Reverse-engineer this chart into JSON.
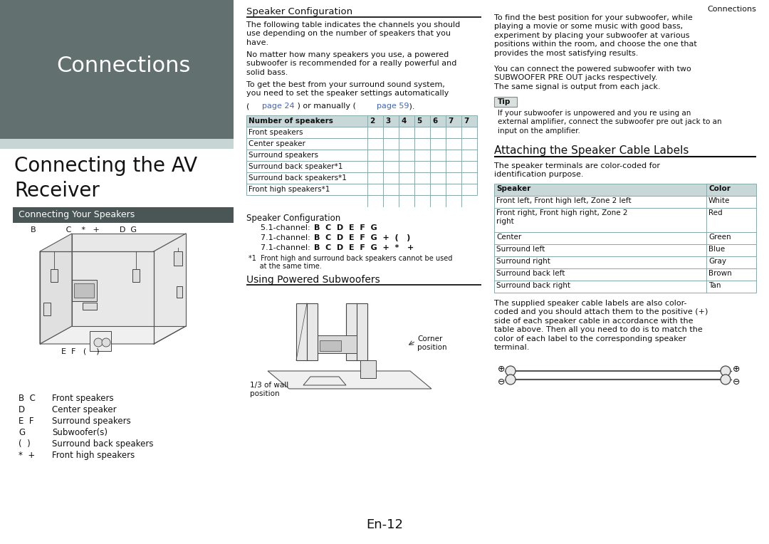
{
  "page_title": "Connections",
  "header_bg": "#627070",
  "header_text_color": "#ffffff",
  "section_bg": "#4a5555",
  "section_text_color": "#ffffff",
  "light_strip_color": "#c8d5d5",
  "body_bg": "#ffffff",
  "body_text_color": "#111111",
  "link_color": "#4466bb",
  "table_header_bg": "#c8d8d8",
  "table_border_color": "#88aaaa",
  "tip_bg": "#d8e0e0",
  "tip_border": "#888888",
  "col1_title": "Connections",
  "col1_section": "Connecting the AV\nReceiver",
  "col1_subsection": "Connecting Your Speakers",
  "legend_items": [
    [
      "B  C",
      "Front speakers"
    ],
    [
      "D",
      "Center speaker"
    ],
    [
      "E  F",
      "Surround speakers"
    ],
    [
      "G",
      "Subwoofer(s)"
    ],
    [
      "(  )",
      "Surround back speakers"
    ],
    [
      "*  +",
      "Front high speakers"
    ]
  ],
  "col2_section1_title": "Speaker Configuration",
  "col2_para1": "The following table indicates the channels you should\nuse depending on the number of speakers that you\nhave.",
  "col2_para2": "No matter how many speakers you use, a powered\nsubwoofer is recommended for a really powerful and\nsolid bass.",
  "col2_para3_prefix": "To get the best from your surround sound system,\nyou need to set the speaker settings automatically\n(    ",
  "col2_para3_link1": "page 24",
  "col2_para3_mid": " ) or manually (    ",
  "col2_para3_link2": "page 59",
  "col2_para3_suffix": " ).",
  "table1_col_labels": [
    "Number of speakers",
    "2",
    "3",
    "4",
    "5",
    "6",
    "7",
    "7"
  ],
  "table1_rows": [
    "Front speakers",
    "Center speaker",
    "Surround speakers",
    "Surround back speaker*1",
    "Surround back speakers*1",
    "Front high speakers*1"
  ],
  "config_title": "Speaker Configuration",
  "config_lines": [
    [
      "5.1-channel: ",
      "B  C  D  E  F  G"
    ],
    [
      "7.1-channel: ",
      "B  C  D  E  F  G  +  (   )"
    ],
    [
      "7.1-channel: ",
      "B  C  D  E  F  G  +  *   +"
    ]
  ],
  "footnote1": "*1  Front high and surround back speakers cannot be used",
  "footnote2": "     at the same time.",
  "col2_section2_title": "Using Powered Subwoofers",
  "subwoofer_label1": "1/3 of wall\nposition",
  "subwoofer_label2": "Corner\nposition",
  "col3_para1": "To find the best position for your subwoofer, while\nplaying a movie or some music with good bass,\nexperiment by placing your subwoofer at various\npositions within the room, and choose the one that\nprovides the most satisfying results.",
  "col3_para2": "You can connect the powered subwoofer with two\nSUBWOOFER PRE OUT jacks respectively.\nThe same signal is output from each jack.",
  "tip_label": "Tip",
  "tip_text": "If your subwoofer is unpowered and you re using an\nexternal amplifier, connect the subwoofer pre out jack to an\ninput on the amplifier.",
  "col3_section2_title": "Attaching the Speaker Cable Labels",
  "col3_para3": "The speaker terminals are color-coded for\nidentification purpose.",
  "speaker_table_rows": [
    [
      "Front left, Front high left, Zone 2 left",
      "White"
    ],
    [
      "Front right, Front high right, Zone 2\nright",
      "Red"
    ],
    [
      "Center",
      "Green"
    ],
    [
      "Surround left",
      "Blue"
    ],
    [
      "Surround right",
      "Gray"
    ],
    [
      "Surround back left",
      "Brown"
    ],
    [
      "Surround back right",
      "Tan"
    ]
  ],
  "col3_para4": "The supplied speaker cable labels are also color-\ncoded and you should attach them to the positive (+)\nside of each speaker cable in accordance with the\ntable above. Then all you need to do is to match the\ncolor of each label to the corresponding speaker\nterminal.",
  "page_number": "En-12",
  "top_right_text": "Connections"
}
